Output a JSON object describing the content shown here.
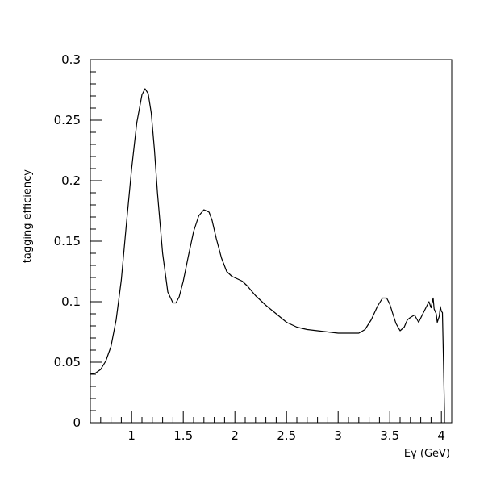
{
  "chart_data": {
    "type": "line",
    "title": "",
    "xlabel": "Eγ (GeV)",
    "ylabel": "tagging efficiency",
    "xlim": [
      0.6,
      4.1
    ],
    "ylim": [
      0,
      0.3
    ],
    "x_ticks": [
      1,
      1.5,
      2,
      2.5,
      3,
      3.5,
      4
    ],
    "x_tick_labels": [
      "1",
      "1.5",
      "2",
      "2.5",
      "3",
      "3.5",
      "4"
    ],
    "y_ticks": [
      0,
      0.05,
      0.1,
      0.15,
      0.2,
      0.25,
      0.3
    ],
    "y_tick_labels": [
      "0",
      "0.05",
      "0.1",
      "0.15",
      "0.2",
      "0.25",
      "0.3"
    ],
    "x_minor_step": 0.1,
    "y_minor_step": 0.01,
    "grid": false,
    "legend": "none",
    "line_color": "#000000",
    "series": [
      {
        "x": [
          0.6,
          0.65,
          0.7,
          0.75,
          0.8,
          0.85,
          0.9,
          0.95,
          1.0,
          1.05,
          1.1,
          1.13,
          1.16,
          1.19,
          1.22,
          1.25,
          1.3,
          1.35,
          1.4,
          1.43,
          1.46,
          1.5,
          1.55,
          1.6,
          1.65,
          1.7,
          1.75,
          1.78,
          1.82,
          1.87,
          1.92,
          1.97,
          2.02,
          2.07,
          2.12,
          2.2,
          2.3,
          2.4,
          2.5,
          2.6,
          2.7,
          2.8,
          2.9,
          3.0,
          3.1,
          3.2,
          3.26,
          3.32,
          3.38,
          3.43,
          3.47,
          3.5,
          3.53,
          3.56,
          3.6,
          3.64,
          3.67,
          3.7,
          3.74,
          3.78,
          3.82,
          3.85,
          3.88,
          3.9,
          3.92,
          3.93,
          3.95,
          3.96,
          3.98,
          3.99,
          4.0,
          4.01,
          4.02,
          4.03,
          4.03
        ],
        "y": [
          0.04,
          0.041,
          0.044,
          0.051,
          0.063,
          0.085,
          0.118,
          0.165,
          0.21,
          0.248,
          0.271,
          0.276,
          0.272,
          0.256,
          0.226,
          0.19,
          0.14,
          0.108,
          0.099,
          0.099,
          0.104,
          0.117,
          0.138,
          0.158,
          0.171,
          0.176,
          0.174,
          0.167,
          0.152,
          0.136,
          0.125,
          0.121,
          0.119,
          0.117,
          0.113,
          0.105,
          0.097,
          0.09,
          0.083,
          0.079,
          0.077,
          0.076,
          0.075,
          0.074,
          0.074,
          0.074,
          0.077,
          0.085,
          0.096,
          0.103,
          0.103,
          0.098,
          0.09,
          0.082,
          0.076,
          0.079,
          0.085,
          0.087,
          0.089,
          0.083,
          0.09,
          0.095,
          0.1,
          0.095,
          0.103,
          0.094,
          0.09,
          0.083,
          0.088,
          0.096,
          0.092,
          0.091,
          0.05,
          0.01,
          0.0
        ]
      }
    ]
  }
}
